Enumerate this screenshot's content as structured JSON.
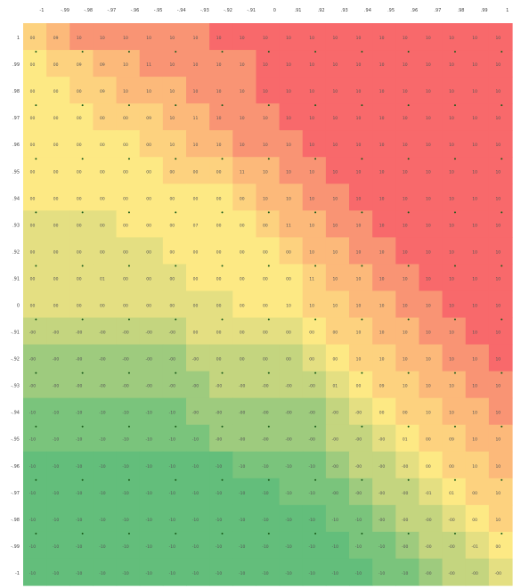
{
  "chart_data": {
    "type": "heatmap",
    "title": "",
    "xlabel": "",
    "ylabel": "",
    "x_labels": [
      "-1",
      "-.99",
      "-.98",
      "-.97",
      "-.96",
      "-.95",
      "-.94",
      "-.93",
      "-.92",
      "-.91",
      "0",
      ".91",
      ".92",
      ".93",
      ".94",
      ".95",
      ".96",
      ".97",
      ".98",
      ".99",
      "1"
    ],
    "y_labels": [
      "1",
      ".99",
      ".98",
      ".97",
      ".96",
      ".95",
      ".94",
      ".93",
      ".92",
      ".91",
      "0",
      "-.91",
      "-.92",
      "-.93",
      "-.94",
      "-.95",
      "-.96",
      "-.97",
      "-.98",
      "-.99",
      "-1"
    ],
    "values": [
      [
        "00",
        "09",
        "10",
        "10",
        "10",
        "10",
        "10",
        "10",
        "10",
        "10",
        "10",
        "10",
        "10",
        "10",
        "10",
        "10",
        "10",
        "10",
        "10",
        "10",
        "10"
      ],
      [
        "00",
        "00",
        "09",
        "09",
        "10",
        "11",
        "10",
        "10",
        "10",
        "10",
        "10",
        "10",
        "10",
        "10",
        "10",
        "10",
        "10",
        "10",
        "10",
        "10",
        "10"
      ],
      [
        "00",
        "00",
        "00",
        "09",
        "10",
        "10",
        "10",
        "10",
        "10",
        "10",
        "10",
        "10",
        "10",
        "10",
        "10",
        "10",
        "10",
        "10",
        "10",
        "10",
        "10"
      ],
      [
        "00",
        "00",
        "00",
        "00",
        "00",
        "09",
        "10",
        "11",
        "10",
        "10",
        "10",
        "10",
        "10",
        "10",
        "10",
        "10",
        "10",
        "10",
        "10",
        "10",
        "10"
      ],
      [
        "00",
        "00",
        "00",
        "00",
        "00",
        "00",
        "10",
        "10",
        "10",
        "10",
        "10",
        "10",
        "10",
        "10",
        "10",
        "10",
        "10",
        "10",
        "10",
        "10",
        "10"
      ],
      [
        "00",
        "00",
        "00",
        "00",
        "00",
        "00",
        "00",
        "00",
        "00",
        "11",
        "10",
        "10",
        "10",
        "10",
        "10",
        "10",
        "10",
        "10",
        "10",
        "10",
        "10"
      ],
      [
        "00",
        "00",
        "00",
        "00",
        "00",
        "00",
        "00",
        "00",
        "00",
        "00",
        "10",
        "10",
        "10",
        "10",
        "10",
        "10",
        "10",
        "10",
        "10",
        "10",
        "10"
      ],
      [
        "00",
        "00",
        "00",
        "00",
        "00",
        "00",
        "00",
        "07",
        "00",
        "00",
        "00",
        "11",
        "10",
        "10",
        "10",
        "10",
        "10",
        "10",
        "10",
        "10",
        "10"
      ],
      [
        "00",
        "00",
        "00",
        "00",
        "00",
        "00",
        "00",
        "00",
        "00",
        "00",
        "00",
        "00",
        "10",
        "10",
        "10",
        "10",
        "10",
        "10",
        "10",
        "10",
        "10"
      ],
      [
        "00",
        "00",
        "00",
        "01",
        "00",
        "00",
        "00",
        "00",
        "00",
        "00",
        "00",
        "00",
        "11",
        "10",
        "10",
        "10",
        "10",
        "10",
        "10",
        "10",
        "10"
      ],
      [
        "00",
        "00",
        "00",
        "00",
        "00",
        "00",
        "00",
        "00",
        "00",
        "00",
        "00",
        "10",
        "10",
        "10",
        "10",
        "10",
        "10",
        "10",
        "10",
        "10",
        "10"
      ],
      [
        "-00",
        "-00",
        "-00",
        "-00",
        "-00",
        "-00",
        "-00",
        "00",
        "00",
        "00",
        "00",
        "00",
        "00",
        "00",
        "10",
        "10",
        "10",
        "10",
        "10",
        "10",
        "10"
      ],
      [
        "-00",
        "-00",
        "-00",
        "-00",
        "-00",
        "-00",
        "-00",
        "-00",
        "00",
        "00",
        "00",
        "00",
        "00",
        "00",
        "10",
        "10",
        "10",
        "10",
        "10",
        "10",
        "10"
      ],
      [
        "-00",
        "-00",
        "-00",
        "-00",
        "-00",
        "-00",
        "-00",
        "-00",
        "-00",
        "-00",
        "-00",
        "-00",
        "-00",
        "01",
        "00",
        "09",
        "10",
        "10",
        "10",
        "10",
        "10"
      ],
      [
        "-10",
        "-10",
        "-10",
        "-10",
        "-10",
        "-10",
        "-10",
        "-00",
        "-00",
        "-00",
        "-00",
        "-00",
        "-00",
        "-00",
        "-00",
        "00",
        "00",
        "10",
        "10",
        "10",
        "10"
      ],
      [
        "-10",
        "-10",
        "-10",
        "-10",
        "-10",
        "-10",
        "-10",
        "-10",
        "-00",
        "-00",
        "-00",
        "-00",
        "-00",
        "-00",
        "-00",
        "-00",
        "01",
        "00",
        "09",
        "10",
        "10"
      ],
      [
        "-10",
        "-10",
        "-10",
        "-10",
        "-10",
        "-10",
        "-10",
        "-10",
        "-10",
        "-10",
        "-10",
        "-10",
        "-10",
        "-00",
        "-00",
        "-00",
        "-00",
        "00",
        "00",
        "10",
        "10"
      ],
      [
        "-10",
        "-10",
        "-10",
        "-10",
        "-10",
        "-10",
        "-10",
        "-10",
        "-10",
        "-10",
        "-10",
        "-10",
        "-10",
        "-00",
        "-00",
        "-00",
        "-00",
        "-01",
        "01",
        "00",
        "10"
      ],
      [
        "-10",
        "-10",
        "-10",
        "-10",
        "-10",
        "-10",
        "-10",
        "-10",
        "-10",
        "-10",
        "-10",
        "-10",
        "-10",
        "-10",
        "-10",
        "-00",
        "-00",
        "-00",
        "-00",
        "00",
        "10"
      ],
      [
        "-10",
        "-10",
        "-10",
        "-10",
        "-10",
        "-10",
        "-10",
        "-10",
        "-10",
        "-10",
        "-10",
        "-10",
        "-10",
        "-10",
        "-10",
        "-10",
        "-00",
        "-00",
        "-00",
        "-01",
        "00"
      ],
      [
        "-10",
        "-10",
        "-10",
        "-10",
        "-10",
        "-10",
        "-10",
        "-10",
        "-10",
        "-10",
        "-10",
        "-10",
        "-10",
        "-10",
        "-10",
        "-10",
        "-10",
        "-00",
        "-00",
        "-00",
        "-00"
      ]
    ],
    "color_levels": [
      [
        6,
        7,
        8,
        8,
        8,
        8,
        8,
        8,
        9,
        9,
        9,
        9,
        9,
        9,
        9,
        9,
        9,
        9,
        9,
        9,
        9
      ],
      [
        5,
        6,
        6,
        7,
        7,
        8,
        8,
        8,
        8,
        8,
        9,
        9,
        9,
        9,
        9,
        9,
        9,
        9,
        9,
        9,
        9
      ],
      [
        5,
        5,
        6,
        6,
        7,
        7,
        7,
        8,
        8,
        8,
        9,
        9,
        9,
        9,
        9,
        9,
        9,
        9,
        9,
        9,
        9
      ],
      [
        5,
        5,
        5,
        6,
        6,
        6,
        7,
        7,
        8,
        8,
        8,
        9,
        9,
        9,
        9,
        9,
        9,
        9,
        9,
        9,
        9
      ],
      [
        5,
        5,
        5,
        5,
        5,
        6,
        6,
        7,
        7,
        8,
        8,
        8,
        9,
        9,
        9,
        9,
        9,
        9,
        9,
        9,
        9
      ],
      [
        5,
        5,
        5,
        5,
        5,
        5,
        6,
        6,
        6,
        7,
        7,
        8,
        8,
        9,
        9,
        9,
        9,
        9,
        9,
        9,
        9
      ],
      [
        5,
        5,
        5,
        5,
        5,
        5,
        5,
        5,
        5,
        6,
        7,
        7,
        8,
        8,
        9,
        9,
        9,
        9,
        9,
        9,
        9
      ],
      [
        4,
        4,
        4,
        4,
        5,
        5,
        5,
        5,
        5,
        5,
        6,
        7,
        7,
        8,
        8,
        9,
        9,
        9,
        9,
        9,
        9
      ],
      [
        4,
        4,
        4,
        4,
        4,
        4,
        5,
        5,
        5,
        5,
        5,
        6,
        7,
        7,
        8,
        8,
        9,
        9,
        9,
        9,
        9
      ],
      [
        4,
        4,
        4,
        4,
        4,
        4,
        4,
        5,
        5,
        5,
        5,
        5,
        6,
        7,
        7,
        8,
        8,
        9,
        9,
        9,
        9
      ],
      [
        4,
        4,
        4,
        4,
        4,
        4,
        4,
        4,
        4,
        5,
        5,
        5,
        6,
        6,
        7,
        7,
        8,
        8,
        9,
        9,
        9
      ],
      [
        3,
        3,
        3,
        3,
        3,
        3,
        3,
        4,
        4,
        4,
        4,
        4,
        5,
        6,
        6,
        7,
        7,
        8,
        8,
        9,
        9
      ],
      [
        2,
        2,
        2,
        2,
        2,
        2,
        2,
        3,
        3,
        3,
        3,
        3,
        4,
        5,
        6,
        6,
        7,
        7,
        8,
        8,
        9
      ],
      [
        2,
        2,
        2,
        2,
        2,
        2,
        2,
        2,
        3,
        3,
        3,
        3,
        3,
        4,
        5,
        6,
        6,
        7,
        7,
        8,
        8
      ],
      [
        1,
        1,
        1,
        1,
        1,
        1,
        1,
        2,
        2,
        2,
        2,
        2,
        2,
        3,
        4,
        5,
        6,
        6,
        7,
        7,
        8
      ],
      [
        1,
        1,
        1,
        1,
        1,
        1,
        1,
        1,
        2,
        2,
        2,
        2,
        2,
        3,
        3,
        4,
        5,
        6,
        6,
        7,
        7
      ],
      [
        0,
        0,
        0,
        0,
        0,
        0,
        0,
        0,
        0,
        1,
        1,
        1,
        1,
        2,
        3,
        3,
        4,
        5,
        6,
        6,
        7
      ],
      [
        0,
        0,
        0,
        0,
        0,
        0,
        0,
        0,
        0,
        0,
        0,
        1,
        1,
        1,
        2,
        3,
        3,
        4,
        5,
        6,
        6
      ],
      [
        0,
        0,
        0,
        0,
        0,
        0,
        0,
        0,
        0,
        0,
        0,
        0,
        0,
        1,
        1,
        2,
        3,
        3,
        4,
        5,
        6
      ],
      [
        0,
        0,
        0,
        0,
        0,
        0,
        0,
        0,
        0,
        0,
        0,
        0,
        0,
        0,
        1,
        1,
        2,
        3,
        3,
        4,
        5
      ],
      [
        0,
        0,
        0,
        0,
        0,
        0,
        0,
        0,
        0,
        0,
        0,
        0,
        0,
        0,
        0,
        1,
        1,
        2,
        3,
        3,
        4
      ]
    ],
    "palette": [
      "#63be7b",
      "#7ac47c",
      "#9ecb7e",
      "#c4d57f",
      "#e4df82",
      "#fde984",
      "#fdd27f",
      "#fcb97a",
      "#f99474",
      "#f8696b"
    ],
    "marker_color": "#1a5c1a",
    "grid": false,
    "legend": "none"
  }
}
